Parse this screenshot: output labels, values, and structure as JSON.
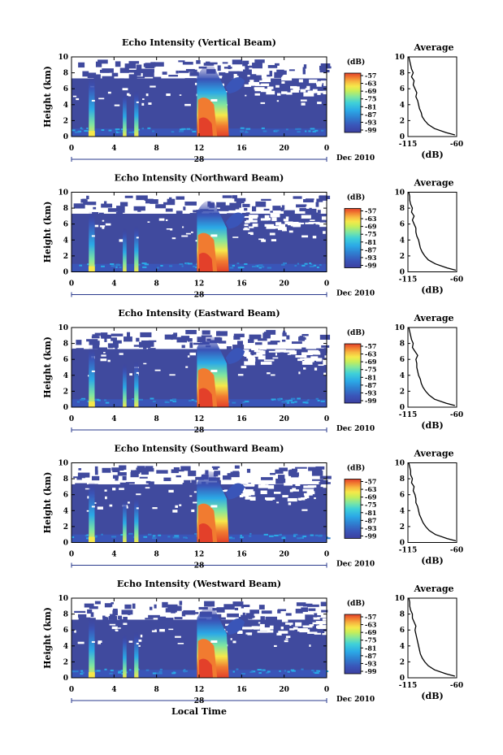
{
  "shared": {
    "x_ticks": [
      "0",
      "4",
      "8",
      "12",
      "16",
      "20",
      "0"
    ],
    "y_ticks": [
      "0",
      "2",
      "4",
      "6",
      "8",
      "10"
    ],
    "ylabel": "Height (km)",
    "day_label": "28",
    "month_label": "Dec 2010",
    "xlabel": "Local Time",
    "colorbar_title": "(dB)",
    "colorbar_ticks": [
      "-57",
      "-63",
      "-69",
      "-75",
      "-81",
      "-87",
      "-93",
      "-99"
    ],
    "profile_title": "Average",
    "profile_xticks": [
      "-115",
      "-60"
    ],
    "profile_xlabel": "(dB)",
    "colors": {
      "background": "#404a9e",
      "colormap": [
        "#3c3fa0",
        "#3a55b8",
        "#2f7fd0",
        "#2ba9e6",
        "#3fd0d8",
        "#7fe6a0",
        "#c8ee58",
        "#f6e84a",
        "#f7b540",
        "#f17b30",
        "#e3402a"
      ]
    }
  },
  "chart_data": [
    {
      "type": "heatmap",
      "title": "Echo Intensity (Vertical Beam)",
      "x_range_hours": [
        0,
        24
      ],
      "y_range_km": [
        0,
        10
      ],
      "color_range_db": [
        -99,
        -57
      ],
      "average_profile": {
        "height_km": [
          0.2,
          0.5,
          1,
          1.5,
          2,
          2.5,
          3,
          3.5,
          4,
          4.5,
          5,
          5.5,
          6,
          6.5,
          7,
          7.5,
          8,
          8.5,
          9,
          9.5,
          10
        ],
        "db": [
          -62,
          -72,
          -85,
          -92,
          -96,
          -99,
          -100,
          -102,
          -103,
          -104,
          -106,
          -105,
          -107,
          -109,
          -108,
          -111,
          -109,
          -111,
          -112,
          -113,
          -114
        ]
      }
    },
    {
      "type": "heatmap",
      "title": "Echo Intensity (Northward Beam)",
      "x_range_hours": [
        0,
        24
      ],
      "y_range_km": [
        0,
        10
      ],
      "color_range_db": [
        -99,
        -57
      ],
      "average_profile": {
        "height_km": [
          0.2,
          0.5,
          1,
          1.5,
          2,
          2.5,
          3,
          3.5,
          4,
          4.5,
          5,
          5.5,
          6,
          6.5,
          7,
          7.5,
          8,
          8.5,
          9,
          9.5,
          10
        ],
        "db": [
          -61,
          -71,
          -84,
          -92,
          -96,
          -99,
          -101,
          -102,
          -103,
          -105,
          -106,
          -106,
          -108,
          -110,
          -108,
          -111,
          -110,
          -112,
          -113,
          -113,
          -114
        ]
      }
    },
    {
      "type": "heatmap",
      "title": "Echo Intensity (Eastward Beam)",
      "x_range_hours": [
        0,
        24
      ],
      "y_range_km": [
        0,
        10
      ],
      "color_range_db": [
        -99,
        -57
      ],
      "average_profile": {
        "height_km": [
          0.2,
          0.5,
          1,
          1.5,
          2,
          2.5,
          3,
          3.5,
          4,
          4.5,
          5,
          5.5,
          6,
          6.5,
          7,
          7.5,
          8,
          8.5,
          9,
          9.5,
          10
        ],
        "db": [
          -62,
          -72,
          -85,
          -91,
          -95,
          -98,
          -100,
          -101,
          -103,
          -104,
          -105,
          -105,
          -106,
          -104,
          -107,
          -110,
          -109,
          -111,
          -112,
          -113,
          -114
        ]
      }
    },
    {
      "type": "heatmap",
      "title": "Echo Intensity (Southward Beam)",
      "x_range_hours": [
        0,
        24
      ],
      "y_range_km": [
        0,
        10
      ],
      "color_range_db": [
        -99,
        -57
      ],
      "average_profile": {
        "height_km": [
          0.2,
          0.5,
          1,
          1.5,
          2,
          2.5,
          3,
          3.5,
          4,
          4.5,
          5,
          5.5,
          6,
          6.5,
          7,
          7.5,
          8,
          8.5,
          9,
          9.5,
          10
        ],
        "db": [
          -61,
          -71,
          -84,
          -91,
          -95,
          -98,
          -100,
          -102,
          -103,
          -104,
          -106,
          -106,
          -107,
          -109,
          -108,
          -111,
          -110,
          -112,
          -112,
          -113,
          -114
        ]
      }
    },
    {
      "type": "heatmap",
      "title": "Echo Intensity (Westward Beam)",
      "x_range_hours": [
        0,
        24
      ],
      "y_range_km": [
        0,
        10
      ],
      "color_range_db": [
        -99,
        -57
      ],
      "average_profile": {
        "height_km": [
          0.2,
          0.5,
          1,
          1.5,
          2,
          2.5,
          3,
          3.5,
          4,
          4.5,
          5,
          5.5,
          6,
          6.5,
          7,
          7.5,
          8,
          8.5,
          9,
          9.5,
          10
        ],
        "db": [
          -62,
          -72,
          -85,
          -92,
          -96,
          -99,
          -101,
          -102,
          -103,
          -104,
          -105,
          -106,
          -107,
          -106,
          -108,
          -110,
          -110,
          -112,
          -113,
          -113,
          -114
        ]
      }
    }
  ]
}
